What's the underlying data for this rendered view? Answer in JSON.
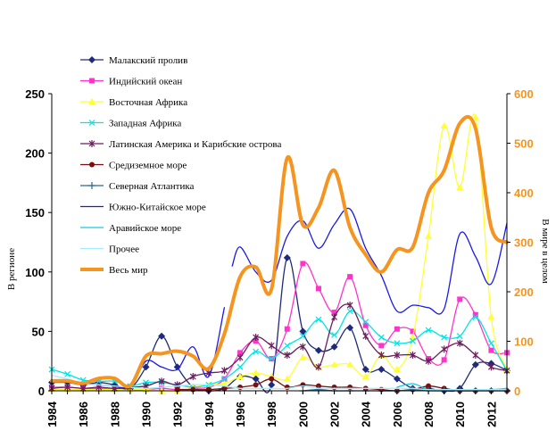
{
  "chart_data": {
    "type": "line",
    "x": [
      1984,
      1985,
      1986,
      1987,
      1988,
      1989,
      1990,
      1991,
      1992,
      1993,
      1994,
      1995,
      1996,
      1997,
      1998,
      1999,
      2000,
      2001,
      2002,
      2003,
      2004,
      2005,
      2006,
      2007,
      2008,
      2009,
      2010,
      2011,
      2012,
      2013
    ],
    "left_axis": {
      "label": "В регионе",
      "ylim": [
        0,
        250
      ],
      "ticks": [
        0,
        50,
        100,
        150,
        200,
        250
      ]
    },
    "right_axis": {
      "label": "В мире в целом",
      "ylim": [
        0,
        600
      ],
      "ticks": [
        0,
        100,
        200,
        300,
        400,
        500,
        600
      ]
    },
    "x_ticks": [
      1984,
      1986,
      1988,
      1990,
      1992,
      1994,
      1996,
      1998,
      2000,
      2002,
      2004,
      2006,
      2008,
      2010,
      2012
    ],
    "legend_position": "top-left",
    "series": [
      {
        "name": "Малакский пролив",
        "axis": "left",
        "color": "#1f2a7a",
        "marker": "diamond",
        "values": [
          7,
          7,
          5,
          7,
          5,
          2,
          20,
          46,
          20,
          3,
          0,
          2,
          12,
          10,
          5,
          112,
          50,
          34,
          37,
          53,
          18,
          18,
          10,
          2,
          2,
          0,
          2,
          22,
          23,
          17
        ]
      },
      {
        "name": "Индийский океан",
        "axis": "left",
        "color": "#ff33cc",
        "marker": "square",
        "values": [
          3,
          3,
          2,
          2,
          2,
          1,
          1,
          2,
          1,
          2,
          3,
          10,
          32,
          42,
          27,
          52,
          107,
          86,
          66,
          96,
          55,
          38,
          52,
          50,
          27,
          26,
          77,
          64,
          34,
          32
        ]
      },
      {
        "name": "Восточная Африка",
        "axis": "left",
        "color": "#ffff33",
        "marker": "triangle",
        "values": [
          1,
          1,
          1,
          1,
          1,
          1,
          1,
          0,
          0,
          3,
          5,
          6,
          12,
          15,
          12,
          10,
          28,
          20,
          22,
          22,
          12,
          30,
          18,
          45,
          130,
          223,
          171,
          230,
          62,
          18
        ]
      },
      {
        "name": "Западная Африка",
        "axis": "left",
        "color": "#00e5e5",
        "marker": "x",
        "values": [
          18,
          14,
          9,
          8,
          8,
          4,
          7,
          7,
          5,
          3,
          5,
          10,
          20,
          33,
          27,
          38,
          46,
          60,
          47,
          67,
          58,
          45,
          40,
          42,
          51,
          45,
          46,
          62,
          40,
          17
        ]
      },
      {
        "name": "Латинская Америка и Карибские острова",
        "axis": "left",
        "color": "#6b1f5c",
        "marker": "asterisk",
        "values": [
          2,
          3,
          2,
          3,
          2,
          3,
          4,
          8,
          5,
          12,
          15,
          17,
          28,
          45,
          38,
          30,
          37,
          20,
          62,
          72,
          46,
          30,
          30,
          30,
          25,
          35,
          40,
          30,
          20,
          17
        ]
      },
      {
        "name": "Средиземное море",
        "axis": "left",
        "color": "#7a0f0f",
        "marker": "circle",
        "values": [
          null,
          null,
          null,
          null,
          null,
          null,
          null,
          null,
          1,
          1,
          1,
          2,
          3,
          5,
          10,
          3,
          5,
          4,
          3,
          3,
          2,
          1,
          0,
          1,
          4,
          2,
          0,
          0,
          0,
          0
        ]
      },
      {
        "name": "Северная Атлантика",
        "axis": "left",
        "color": "#2a6b8a",
        "marker": "plus",
        "values": [
          null,
          null,
          null,
          null,
          null,
          null,
          null,
          null,
          null,
          null,
          null,
          null,
          null,
          null,
          null,
          null,
          0,
          1,
          0,
          0,
          0,
          0,
          0,
          1,
          0,
          0,
          0,
          0,
          0,
          0
        ]
      },
      {
        "name": "Южно-Китайское море",
        "axis": "left",
        "color": "#1a1ae6",
        "marker": "dash",
        "values": [
          null,
          null,
          null,
          null,
          null,
          null,
          null,
          null,
          null,
          null,
          null,
          null,
          null,
          null,
          null,
          null,
          null,
          null,
          null,
          null,
          null,
          null,
          null,
          null,
          null,
          null,
          null,
          null,
          null,
          null
        ],
        "segments": [
          {
            "x": [
              1984,
              1985,
              1986,
              1987,
              1988,
              1989,
              1990,
              1991,
              1992,
              1993,
              1994,
              1995
            ],
            "values": [
              8,
              8,
              6,
              5,
              4,
              3,
              25,
              20,
              18,
              37,
              12,
              70
            ]
          },
          {
            "x": [
              1995.5,
              1996,
              1997,
              1998,
              1999,
              2000,
              2001,
              2002,
              2003,
              2004,
              2005,
              2006,
              2007,
              2008,
              2009,
              2010,
              2011,
              2012,
              2013
            ],
            "values": [
              105,
              121,
              100,
              93,
              130,
              143,
              120,
              140,
              153,
              120,
              97,
              67,
              72,
              70,
              69,
              132,
              113,
              90,
              141
            ]
          }
        ]
      },
      {
        "name": "Аравийское море",
        "axis": "left",
        "color": "#19c6e6",
        "marker": "dash",
        "values": [
          null,
          null,
          null,
          null,
          null,
          null,
          null,
          null,
          null,
          null,
          null,
          null,
          null,
          null,
          null,
          null,
          null,
          null,
          null,
          null,
          null,
          null,
          3,
          6,
          1,
          1,
          1,
          1,
          1,
          2
        ]
      },
      {
        "name": "Прочее",
        "axis": "left",
        "color": "#a7ecff",
        "marker": "dash",
        "values": [
          13,
          10,
          6,
          5,
          4,
          3,
          2,
          3,
          4,
          5,
          5,
          4,
          2,
          2,
          2,
          2,
          4,
          2,
          2,
          2,
          2,
          2,
          2,
          2,
          1,
          1,
          1,
          1,
          1,
          1
        ]
      },
      {
        "name": "Весь мир",
        "axis": "right",
        "color": "#f5941f",
        "marker": "none",
        "thick": true,
        "values": [
          20,
          20,
          15,
          25,
          25,
          10,
          70,
          75,
          80,
          70,
          45,
          115,
          230,
          250,
          205,
          470,
          335,
          370,
          445,
          330,
          275,
          240,
          285,
          290,
          400,
          445,
          540,
          530,
          330,
          300
        ]
      }
    ]
  }
}
